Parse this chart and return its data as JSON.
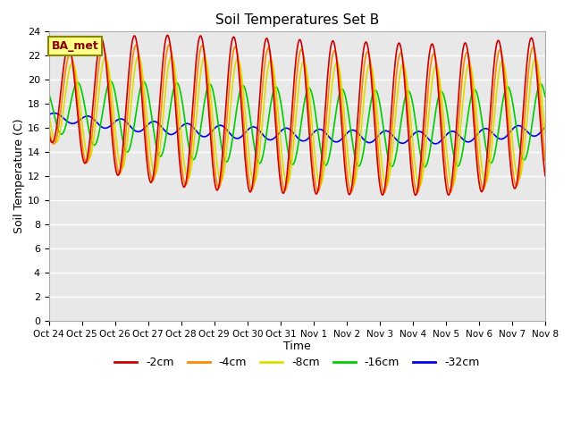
{
  "title": "Soil Temperatures Set B",
  "xlabel": "Time",
  "ylabel": "Soil Temperature (C)",
  "ylim": [
    0,
    24
  ],
  "yticks": [
    0,
    2,
    4,
    6,
    8,
    10,
    12,
    14,
    16,
    18,
    20,
    22,
    24
  ],
  "xtick_labels": [
    "Oct 24",
    "Oct 25",
    "Oct 26",
    "Oct 27",
    "Oct 28",
    "Oct 29",
    "Oct 30",
    "Oct 31",
    "Nov 1",
    "Nov 2",
    "Nov 3",
    "Nov 4",
    "Nov 5",
    "Nov 6",
    "Nov 7",
    "Nov 8"
  ],
  "colors": {
    "-2cm": "#cc0000",
    "-4cm": "#ff8800",
    "-8cm": "#dddd00",
    "-16cm": "#00cc00",
    "-32cm": "#0000ee"
  },
  "legend_label": "BA_met",
  "legend_box_facecolor": "#ffff88",
  "legend_text_color": "#880000",
  "bg_color": "#e8e8e8",
  "grid_color": "#ffffff",
  "linewidth": 1.2,
  "num_days": 15,
  "points_per_day": 48,
  "depths": [
    "-2cm",
    "-4cm",
    "-8cm",
    "-16cm",
    "-32cm"
  ],
  "depth_lags_days": [
    0.0,
    0.05,
    0.12,
    0.28,
    0.6
  ],
  "depth_dampings": [
    1.0,
    0.92,
    0.8,
    0.5,
    0.08
  ],
  "depth_mean_offsets": [
    0.0,
    0.3,
    0.5,
    0.8,
    1.5
  ]
}
